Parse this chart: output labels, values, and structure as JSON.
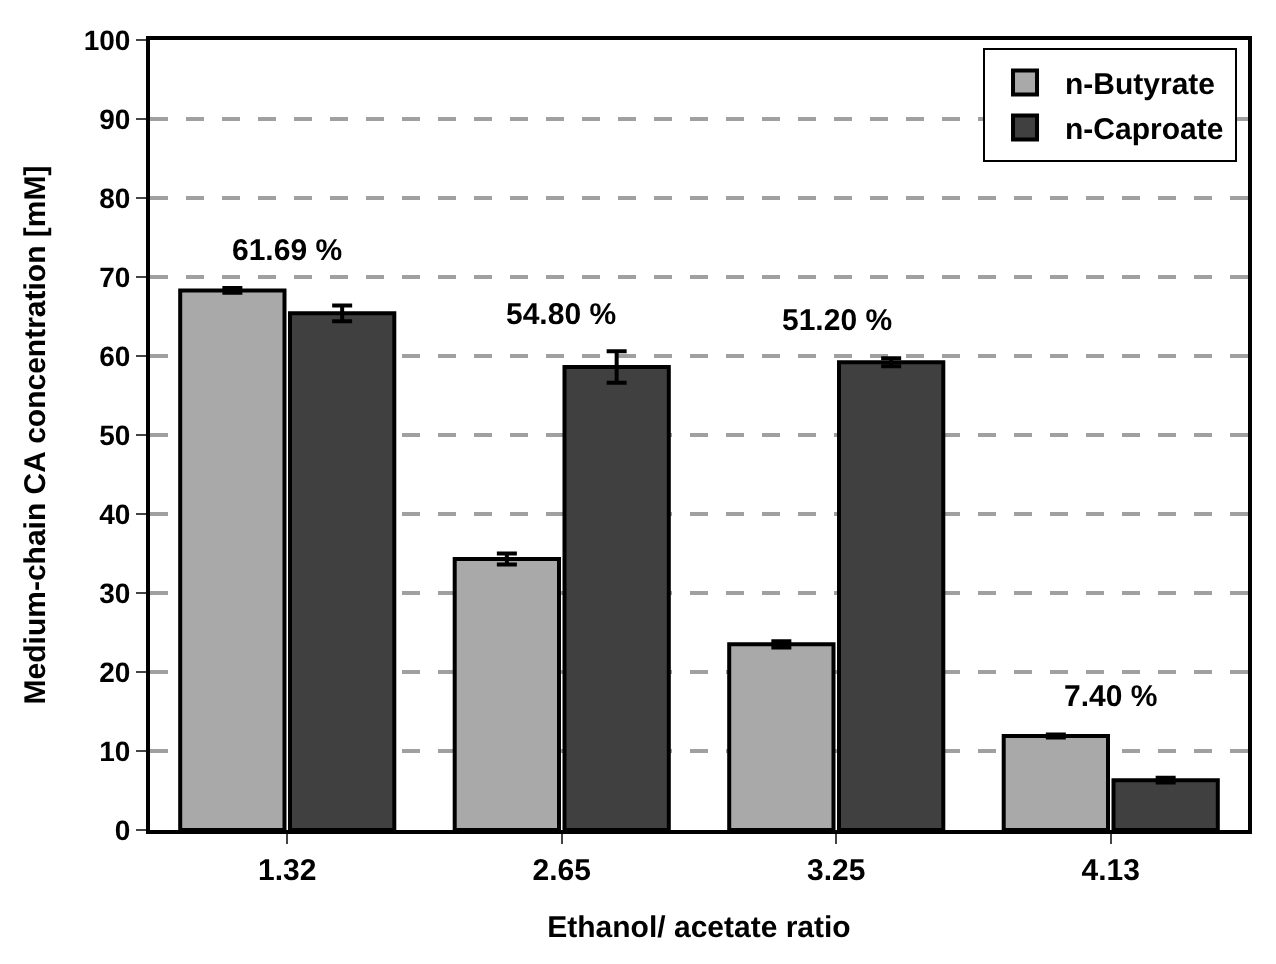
{
  "chart_data": {
    "type": "bar",
    "xlabel": "Ethanol/ acetate ratio",
    "ylabel": "Medium-chain CA concentration [mM]",
    "categories": [
      "1.32",
      "2.65",
      "3.25",
      "4.13"
    ],
    "series": [
      {
        "name": "n-Butyrate",
        "color": "#a9a9a9",
        "values": [
          68.3,
          34.3,
          23.5,
          11.9
        ],
        "errors": [
          0.3,
          0.7,
          0.4,
          0.2
        ]
      },
      {
        "name": "n-Caproate",
        "color": "#404040",
        "values": [
          65.4,
          58.6,
          59.2,
          6.3
        ],
        "errors": [
          1.0,
          2.0,
          0.5,
          0.3
        ]
      }
    ],
    "annotations": [
      "61.69 %",
      "54.80 %",
      "51.20 %",
      "7.40 %"
    ],
    "ylim": [
      0,
      100
    ],
    "yticks": [
      0,
      10,
      20,
      30,
      40,
      50,
      60,
      70,
      80,
      90,
      100
    ],
    "grid": "y",
    "legend": "top right"
  }
}
